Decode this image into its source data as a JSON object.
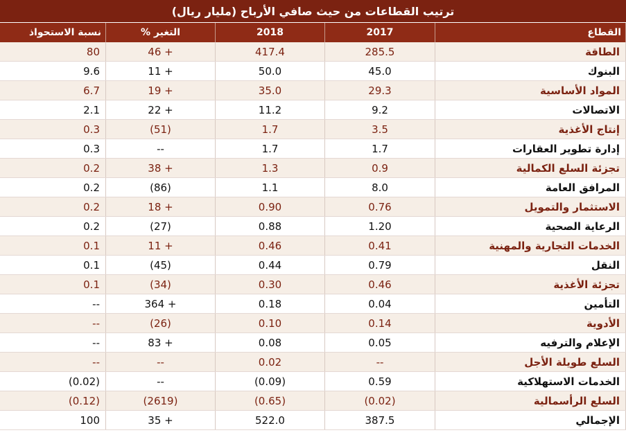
{
  "title": "ترتيب القطاعات من حيث صافي الأرباح (مليار ريال)",
  "headers": {
    "sector": "القطاع",
    "y2017": "2017",
    "y2018": "2018",
    "change": "التغير %",
    "share": "نسبة الاستحواذ"
  },
  "rows": [
    {
      "sector": "الطاقة",
      "y2017": "285.5",
      "y2018": "417.4",
      "change": "46 +",
      "share": "80"
    },
    {
      "sector": "البنوك",
      "y2017": "45.0",
      "y2018": "50.0",
      "change": "11 +",
      "share": "9.6"
    },
    {
      "sector": "المواد الأساسية",
      "y2017": "29.3",
      "y2018": "35.0",
      "change": "19 +",
      "share": "6.7"
    },
    {
      "sector": "الاتصالات",
      "y2017": "9.2",
      "y2018": "11.2",
      "change": "22 +",
      "share": "2.1"
    },
    {
      "sector": "إنتاج الأغذية",
      "y2017": "3.5",
      "y2018": "1.7",
      "change": "(51)",
      "share": "0.3"
    },
    {
      "sector": "إدارة تطوير العقارات",
      "y2017": "1.7",
      "y2018": "1.7",
      "change": "--",
      "share": "0.3"
    },
    {
      "sector": "تجزئة السلع الكمالية",
      "y2017": "0.9",
      "y2018": "1.3",
      "change": "38 +",
      "share": "0.2"
    },
    {
      "sector": "المرافق العامة",
      "y2017": "8.0",
      "y2018": "1.1",
      "change": "(86)",
      "share": "0.2"
    },
    {
      "sector": "الاستثمار والتمويل",
      "y2017": "0.76",
      "y2018": "0.90",
      "change": "18 +",
      "share": "0.2"
    },
    {
      "sector": "الرعاية الصحية",
      "y2017": "1.20",
      "y2018": "0.88",
      "change": "(27)",
      "share": "0.2"
    },
    {
      "sector": "الخدمات التجارية والمهنية",
      "y2017": "0.41",
      "y2018": "0.46",
      "change": "11 +",
      "share": "0.1"
    },
    {
      "sector": "النقل",
      "y2017": "0.79",
      "y2018": "0.44",
      "change": "(45)",
      "share": "0.1"
    },
    {
      "sector": "تجزئة الأغذية",
      "y2017": "0.46",
      "y2018": "0.30",
      "change": "(34)",
      "share": "0.1"
    },
    {
      "sector": "التأمين",
      "y2017": "0.04",
      "y2018": "0.18",
      "change": "364 +",
      "share": "--"
    },
    {
      "sector": "الأدوية",
      "y2017": "0.14",
      "y2018": "0.10",
      "change": "(26)",
      "share": "--"
    },
    {
      "sector": "الإعلام والترفيه",
      "y2017": "0.05",
      "y2018": "0.08",
      "change": "83 +",
      "share": "--"
    },
    {
      "sector": "السلع طويلة الأجل",
      "y2017": "--",
      "y2018": "0.02",
      "change": "--",
      "share": "--"
    },
    {
      "sector": "الخدمات الاستهلاكية",
      "y2017": "0.59",
      "y2018": "(0.09)",
      "change": "--",
      "share": "(0.02)"
    },
    {
      "sector": "السلع الرأسمالية",
      "y2017": "(0.02)",
      "y2018": "(0.65)",
      "change": "(2619)",
      "share": "(0.12)"
    },
    {
      "sector": "الإجمالي",
      "y2017": "387.5",
      "y2018": "522.0",
      "change": "35 +",
      "share": "100"
    }
  ],
  "colors": {
    "title_bg": "#7b2211",
    "header_bg": "#8f2b16",
    "odd_row_bg": "#f6eee6",
    "odd_row_text": "#7b2211"
  }
}
